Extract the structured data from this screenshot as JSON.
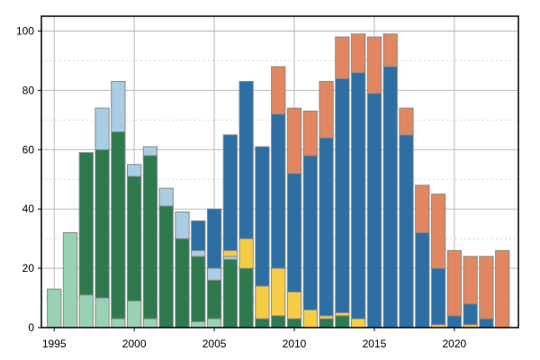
{
  "chart_data": {
    "type": "bar",
    "stacked": true,
    "x": [
      1995,
      1996,
      1997,
      1998,
      1999,
      2000,
      2001,
      2002,
      2003,
      2004,
      2005,
      2006,
      2007,
      2008,
      2009,
      2010,
      2011,
      2012,
      2013,
      2014,
      2015,
      2016,
      2017,
      2018,
      2019,
      2020,
      2021,
      2022,
      2023
    ],
    "xticks": [
      1995,
      2000,
      2005,
      2010,
      2015,
      2020
    ],
    "yticks": [
      0,
      20,
      40,
      60,
      80,
      100
    ],
    "xlim": [
      1994.2,
      2024.0
    ],
    "ylim": [
      0,
      105
    ],
    "grid": true,
    "legend": "none",
    "series": [
      {
        "color": "#98d1b4",
        "values": [
          13,
          32,
          11,
          10,
          3,
          9,
          3,
          0,
          0,
          2,
          3,
          0,
          0,
          0,
          0,
          0,
          0,
          0,
          0,
          0,
          0,
          0,
          0,
          0,
          0,
          0,
          0,
          0,
          0
        ]
      },
      {
        "color": "#2e7a4f",
        "values": [
          0,
          0,
          48,
          50,
          63,
          42,
          55,
          41,
          30,
          22,
          13,
          23,
          20,
          3,
          4,
          3,
          0,
          3,
          4,
          0,
          0,
          0,
          0,
          0,
          0,
          0,
          0,
          0,
          0
        ]
      },
      {
        "color": "#a9cde4",
        "values": [
          0,
          0,
          0,
          14,
          17,
          4,
          3,
          6,
          9,
          2,
          4,
          1,
          0,
          0,
          0,
          0,
          0,
          0,
          0,
          0,
          0,
          0,
          0,
          0,
          0,
          0,
          0,
          0,
          0
        ]
      },
      {
        "color": "#f5cd45",
        "values": [
          0,
          0,
          0,
          0,
          0,
          0,
          0,
          0,
          0,
          0,
          0,
          2,
          10,
          11,
          16,
          9,
          6,
          1,
          1,
          3,
          0,
          0,
          0,
          0,
          1,
          0,
          1,
          0,
          0
        ]
      },
      {
        "color": "#2b6fa5",
        "values": [
          0,
          0,
          0,
          0,
          0,
          0,
          0,
          0,
          0,
          10,
          20,
          39,
          53,
          47,
          52,
          40,
          52,
          60,
          79,
          83,
          79,
          88,
          65,
          32,
          19,
          4,
          7,
          3,
          0
        ]
      },
      {
        "color": "#e08762",
        "values": [
          0,
          0,
          0,
          0,
          0,
          0,
          0,
          0,
          0,
          0,
          0,
          0,
          0,
          0,
          16,
          22,
          15,
          19,
          14,
          13,
          19,
          11,
          9,
          16,
          25,
          22,
          16,
          21,
          26
        ]
      }
    ]
  }
}
